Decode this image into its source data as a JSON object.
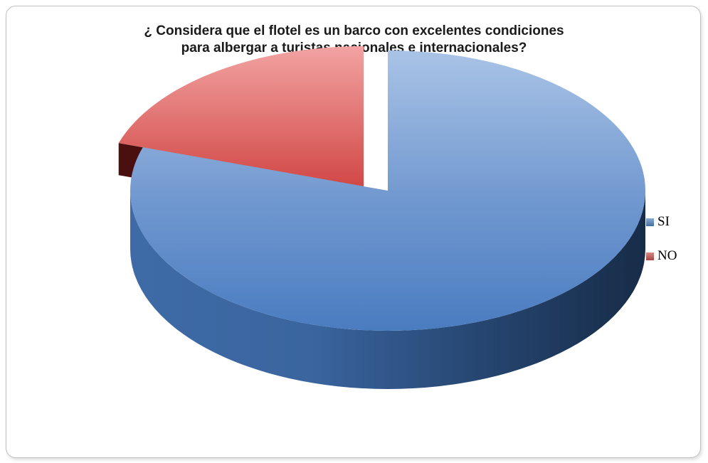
{
  "chart_data": {
    "type": "pie",
    "style": "3d-exploded",
    "title_lines": [
      "¿ Considera que el flotel es un barco con excelentes condiciones",
      "para albergar a turistas nacionales e internacionales?"
    ],
    "categories": [
      "SI",
      "NO"
    ],
    "values": [
      80,
      20
    ],
    "colors": [
      "#4f81bd",
      "#c0504d"
    ],
    "legend_position": "right"
  }
}
